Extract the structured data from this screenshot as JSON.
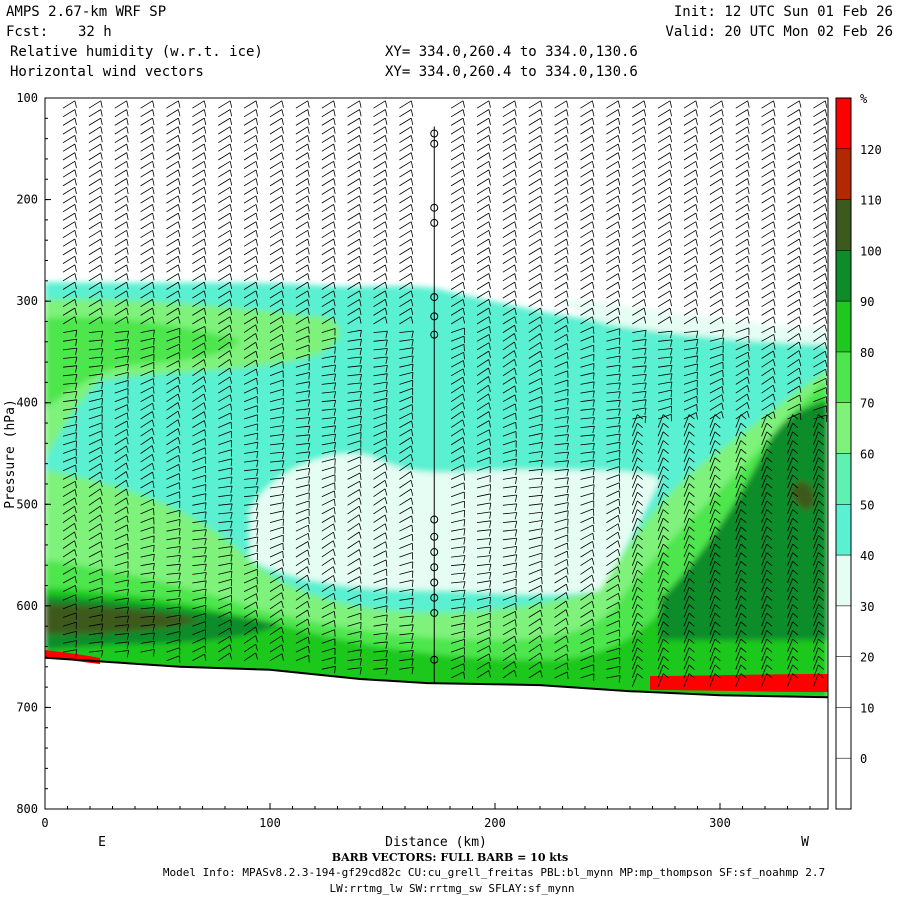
{
  "header": {
    "model": "AMPS 2.67-km WRF SP",
    "fcst_label": "Fcst:",
    "fcst_value": "32 h",
    "field1": "Relative humidity (w.r.t. ice)",
    "field2": "Horizontal wind vectors",
    "init": "Init: 12 UTC Sun 01 Feb 26",
    "valid": "Valid: 20 UTC Mon 02 Feb 26",
    "xy1": "XY= 334.0,260.4 to 334.0,130.6",
    "xy2": "XY= 334.0,260.4 to 334.0,130.6"
  },
  "chart_data": {
    "type": "heatmap",
    "title": "Relative humidity (w.r.t. ice)",
    "subtitle": "Horizontal wind vectors",
    "xlabel": "Distance (km)",
    "ylabel": "Pressure (hPa)",
    "xlim": [
      0,
      348
    ],
    "ylim": [
      800,
      100
    ],
    "x_ticks": [
      0,
      100,
      200,
      300
    ],
    "y_ticks": [
      100,
      200,
      300,
      400,
      500,
      600,
      700,
      800
    ],
    "end_left": "E",
    "end_right": "W",
    "colorbar": {
      "unit": "%",
      "levels": [
        0,
        10,
        20,
        30,
        40,
        50,
        60,
        70,
        80,
        90,
        100,
        110,
        120
      ],
      "colors": [
        "#ffffff",
        "#ffffff",
        "#ffffff",
        "#ffffff",
        "#e6fdf4",
        "#5af0d2",
        "#5ff0b4",
        "#7ef27a",
        "#4ee64e",
        "#1fc81f",
        "#0e8c2a",
        "#3d5a1e",
        "#b42800",
        "#ff0000"
      ]
    },
    "terrain_hpa": [
      [
        0,
        651
      ],
      [
        60,
        660
      ],
      [
        100,
        663
      ],
      [
        140,
        672
      ],
      [
        170,
        676
      ],
      [
        220,
        678
      ],
      [
        260,
        684
      ],
      [
        300,
        688
      ],
      [
        348,
        690
      ]
    ],
    "vertical_line_km": 173,
    "barbs_note": "BARB VECTORS: FULL BARB = 10 kts"
  },
  "footer": {
    "barb_legend": "BARB VECTORS: FULL BARB = 10 kts",
    "model_info": "Model Info: MPASv8.2.3-194-gf29cd82c CU:cu_grell_freitas PBL:bl_mynn MP:mp_thompson SF:sf_noahmp 2.7",
    "physics": "LW:rrtmg_lw SW:rrtmg_sw SFLAY:sf_mynn"
  },
  "colors": {
    "frame": "#000000",
    "background": "#ffffff",
    "terrain_red": "#ff0000"
  }
}
